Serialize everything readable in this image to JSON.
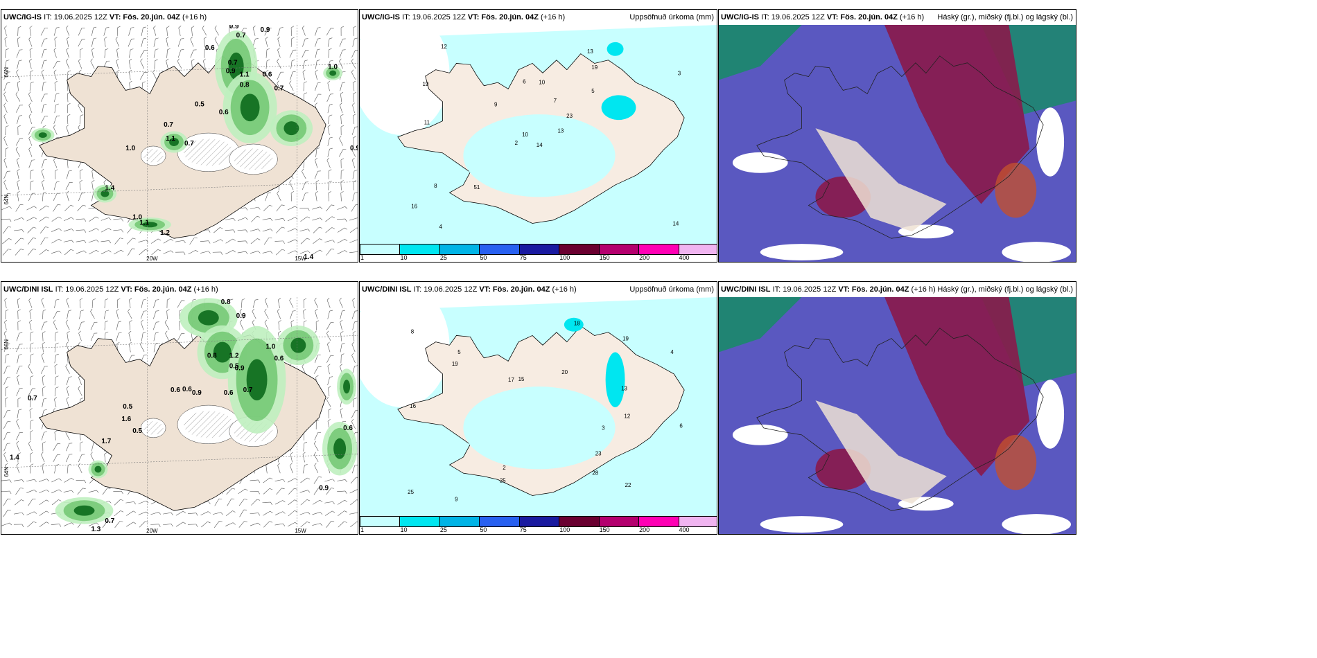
{
  "panels": [
    {
      "id": "p1",
      "model": "UWC/IG-IS",
      "rest": "IT: 19.06.2025 12Z",
      "vt_label": "VT:",
      "vt": "Fös. 20.jún. 04Z",
      "lead": "(+16 h)",
      "title": "",
      "kind": "wind",
      "labels": [
        "0.9",
        "0.7",
        "0.9",
        "0.6",
        "0.7",
        "0.9",
        "1.1",
        "0.8",
        "0.6",
        "0.7",
        "0.5",
        "0.6",
        "1.0",
        "0.7",
        "1.1",
        "0.7",
        "1.0",
        "0.9",
        "1.4",
        "1.0",
        "1.1",
        "1.2",
        "1.4"
      ],
      "axes": [
        "66N",
        "64N",
        "20W",
        "15W"
      ]
    },
    {
      "id": "p2",
      "model": "UWC/IG-IS",
      "rest": "IT: 19.06.2025 12Z",
      "vt_label": "VT:",
      "vt": "Fös. 20.jún. 04Z",
      "lead": "(+16 h)",
      "title": "Uppsöfnuð úrkoma (mm)",
      "kind": "precip",
      "labels": [
        "14",
        "19",
        "10",
        "16",
        "23",
        "51",
        "13",
        "10",
        "19",
        "13",
        "12",
        "14",
        "11",
        "3",
        "2",
        "5",
        "4",
        "6",
        "7",
        "8",
        "9"
      ]
    },
    {
      "id": "p3",
      "model": "UWC/IG-IS",
      "rest": "IT: 19.06.2025 12Z",
      "vt_label": "VT:",
      "vt": "Fös. 20.jún. 04Z",
      "lead": "(+16 h)",
      "title": "Háský (gr.), miðský (fj.bl.) og lágský (bl.)",
      "kind": "cloud"
    },
    {
      "id": "p4",
      "model": "UWC/DINI ISL",
      "rest": "IT: 19.06.2025 12Z",
      "vt_label": "VT:",
      "vt": "Fös. 20.jún. 04Z",
      "lead": "(+16 h)",
      "title": "",
      "kind": "wind",
      "labels": [
        "0.8",
        "0.9",
        "0.8",
        "1.2",
        "0.9",
        "0.5",
        "0.6",
        "0.6",
        "0.9",
        "0.6",
        "0.7",
        "1.0",
        "0.6",
        "0.5",
        "1.6",
        "0.5",
        "1.7",
        "0.7",
        "1.4",
        "0.6",
        "0.9",
        "1.3",
        "0.7"
      ],
      "axes": [
        "66N",
        "64N",
        "20W",
        "15W"
      ]
    },
    {
      "id": "p5",
      "model": "UWC/DINI ISL",
      "rest": "IT: 19.06.2025 12Z",
      "vt_label": "VT:",
      "vt": "Fös. 20.jún. 04Z",
      "lead": "(+16 h)",
      "title": "Uppsöfnuð úrkoma (mm)",
      "kind": "precip",
      "labels": [
        "13",
        "23",
        "25",
        "22",
        "19",
        "25",
        "28",
        "17",
        "19",
        "12",
        "20",
        "18",
        "15",
        "16",
        "9",
        "6",
        "5",
        "4",
        "3",
        "2",
        "8"
      ]
    },
    {
      "id": "p6",
      "model": "UWC/DINI ISL",
      "rest": "IT: 19.06.2025 12Z",
      "vt_label": "VT:",
      "vt": "Fös. 20.jún. 04Z",
      "lead": "(+16 h)",
      "title": "Háský (gr.), miðský (fj.bl.) og lágský (bl.)",
      "kind": "cloud"
    }
  ],
  "colorbar": {
    "colors": [
      "#c8ffff",
      "#00e6f0",
      "#00b4e6",
      "#2860f0",
      "#1a1aa0",
      "#6a0030",
      "#b4006e",
      "#ff00b4",
      "#f0b4f0"
    ],
    "labels": [
      "1",
      "10",
      "25",
      "50",
      "75",
      "100",
      "150",
      "200",
      "400"
    ]
  }
}
